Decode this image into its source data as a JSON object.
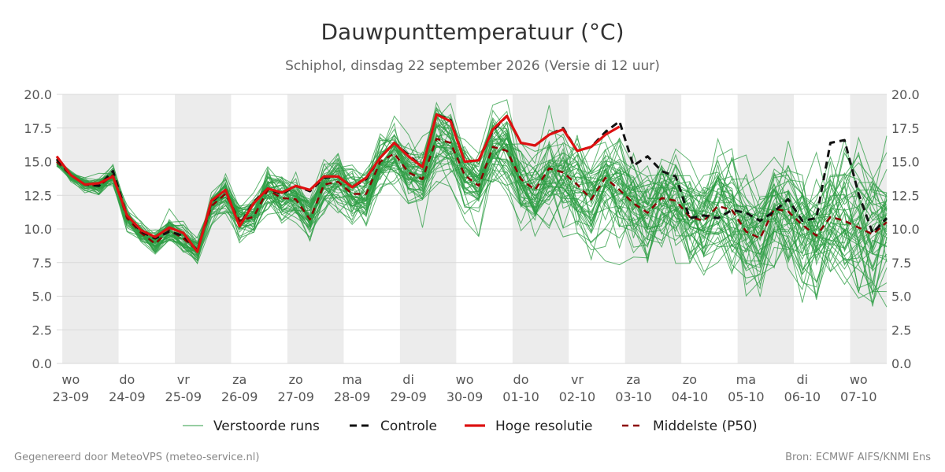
{
  "title": "Dauwpunttemperatuur (°C)",
  "subtitle": "Schiphol, dinsdag 22 september 2026 (Versie di 12 uur)",
  "footer_left": "Gegenereerd door MeteoVPS (meteo-service.nl)",
  "footer_right": "Bron: ECMWF AIFS/KNMI Ens",
  "chart_data": {
    "type": "line",
    "title": "Dauwpunttemperatuur (°C)",
    "ylim": [
      0,
      20
    ],
    "y_ticks": [
      "0.0",
      "2.5",
      "5.0",
      "7.5",
      "10.0",
      "12.5",
      "15.0",
      "17.5",
      "20.0"
    ],
    "x_range_days": [
      22.75,
      37.5
    ],
    "x_ticks": [
      {
        "day": 23,
        "weekday": "wo",
        "date": "23-09"
      },
      {
        "day": 24,
        "weekday": "do",
        "date": "24-09"
      },
      {
        "day": 25,
        "weekday": "vr",
        "date": "25-09"
      },
      {
        "day": 26,
        "weekday": "za",
        "date": "26-09"
      },
      {
        "day": 27,
        "weekday": "zo",
        "date": "27-09"
      },
      {
        "day": 28,
        "weekday": "ma",
        "date": "28-09"
      },
      {
        "day": 29,
        "weekday": "di",
        "date": "29-09"
      },
      {
        "day": 30,
        "weekday": "wo",
        "date": "30-09"
      },
      {
        "day": 31,
        "weekday": "do",
        "date": "01-10"
      },
      {
        "day": 32,
        "weekday": "vr",
        "date": "02-10"
      },
      {
        "day": 33,
        "weekday": "za",
        "date": "03-10"
      },
      {
        "day": 34,
        "weekday": "zo",
        "date": "04-10"
      },
      {
        "day": 35,
        "weekday": "ma",
        "date": "05-10"
      },
      {
        "day": 36,
        "weekday": "di",
        "date": "06-10"
      },
      {
        "day": 37,
        "weekday": "wo",
        "date": "07-10"
      }
    ],
    "grid": "horizontal",
    "legend_position": "bottom",
    "colors": {
      "ensemble": "#2e9e44",
      "control": "#111111",
      "hires": "#dd1111",
      "median": "#8b0000",
      "band": "#ececec"
    },
    "x_days": [
      22.75,
      23.0,
      23.25,
      23.5,
      23.75,
      24.0,
      24.25,
      24.5,
      24.75,
      25.0,
      25.25,
      25.5,
      25.75,
      26.0,
      26.25,
      26.5,
      26.75,
      27.0,
      27.25,
      27.5,
      27.75,
      28.0,
      28.25,
      28.5,
      28.75,
      29.0,
      29.25,
      29.5,
      29.75,
      30.0,
      30.25,
      30.5,
      30.75,
      31.0,
      31.25,
      31.5,
      31.75,
      32.0,
      32.25,
      32.5,
      32.75,
      33.0,
      33.25,
      33.5,
      33.75,
      34.0,
      34.25,
      34.5,
      34.75,
      35.0,
      35.25,
      35.5,
      35.75,
      36.0,
      36.25,
      36.5,
      36.75,
      37.0,
      37.25,
      37.5
    ],
    "series": [
      {
        "name": "Controle",
        "role": "control",
        "style": "dashed",
        "values": [
          15.2,
          14.0,
          13.3,
          13.2,
          14.3,
          11.0,
          9.8,
          9.3,
          9.8,
          9.5,
          8.4,
          12.0,
          12.9,
          10.3,
          12.0,
          13.0,
          12.6,
          13.2,
          12.8,
          13.8,
          13.9,
          13.1,
          13.7,
          15.3,
          16.4,
          15.5,
          14.6,
          18.5,
          18.1,
          15.0,
          15.1,
          17.3,
          18.4,
          16.4,
          16.2,
          17.0,
          17.5,
          15.8,
          16.1,
          17.2,
          18.0,
          14.7,
          15.4,
          14.3,
          13.9,
          10.8,
          11.0,
          10.8,
          11.4,
          11.2,
          10.6,
          11.3,
          12.2,
          10.6,
          10.8,
          16.4,
          16.6,
          12.6,
          9.7,
          10.8
        ]
      },
      {
        "name": "Hoge resolutie",
        "role": "hires",
        "style": "solid",
        "values": [
          15.4,
          14.0,
          13.3,
          13.4,
          13.9,
          11.0,
          9.9,
          9.4,
          10.1,
          9.7,
          8.3,
          12.1,
          12.9,
          10.2,
          11.9,
          13.0,
          12.7,
          13.2,
          12.9,
          13.9,
          13.9,
          13.1,
          13.8,
          15.3,
          16.4,
          15.4,
          14.6,
          18.5,
          18.0,
          15.0,
          15.1,
          17.4,
          18.4,
          16.4,
          16.2,
          17.0,
          17.4,
          15.8,
          16.1,
          17.0,
          17.6
        ]
      },
      {
        "name": "Middelste (P50)",
        "role": "median",
        "style": "dashed",
        "values": [
          15.0,
          14.0,
          13.3,
          13.2,
          14.0,
          10.8,
          9.7,
          8.9,
          9.9,
          9.3,
          8.4,
          11.7,
          12.6,
          10.6,
          10.9,
          12.9,
          12.3,
          12.2,
          10.7,
          13.3,
          13.5,
          12.6,
          12.6,
          15.0,
          15.6,
          14.2,
          13.7,
          16.7,
          16.4,
          14.0,
          13.2,
          16.1,
          15.8,
          13.7,
          12.9,
          14.5,
          14.2,
          13.3,
          12.2,
          13.8,
          12.9,
          11.9,
          11.2,
          12.3,
          12.1,
          10.9,
          10.6,
          11.7,
          11.4,
          9.8,
          9.3,
          11.5,
          11.3,
          10.3,
          9.5,
          10.9,
          10.6,
          10.1,
          9.6,
          10.5
        ]
      },
      {
        "name": "Verstoorde runs",
        "role": "ensemble-legend",
        "style": "solid",
        "values": []
      }
    ],
    "ensemble_member_count": 50
  },
  "legend": [
    {
      "key": "ensemble",
      "label": "Verstoorde runs"
    },
    {
      "key": "control",
      "label": "Controle"
    },
    {
      "key": "hires",
      "label": "Hoge resolutie"
    },
    {
      "key": "median",
      "label": "Middelste (P50)"
    }
  ]
}
